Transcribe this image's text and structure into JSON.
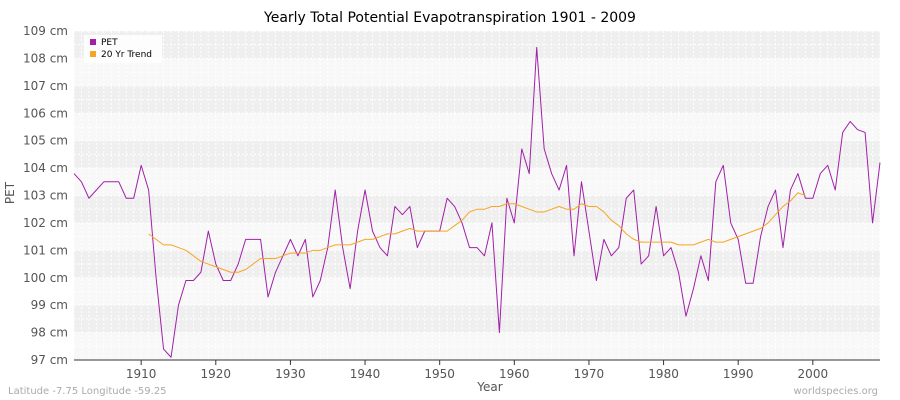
{
  "chart_data": {
    "type": "line",
    "title": "Yearly Total Potential Evapotranspiration 1901 - 2009",
    "xlabel": "Year",
    "ylabel": "PET",
    "xlim": [
      1901,
      2009
    ],
    "ylim": [
      97,
      109
    ],
    "x_ticks": [
      1910,
      1920,
      1930,
      1940,
      1950,
      1960,
      1970,
      1980,
      1990,
      2000
    ],
    "y_ticks": [
      {
        "value": 97,
        "label": "97 cm"
      },
      {
        "value": 98,
        "label": "98 cm"
      },
      {
        "value": 99,
        "label": "99 cm"
      },
      {
        "value": 100,
        "label": "100 cm"
      },
      {
        "value": 101,
        "label": "101 cm"
      },
      {
        "value": 102,
        "label": "102 cm"
      },
      {
        "value": 103,
        "label": "103 cm"
      },
      {
        "value": 104,
        "label": "104 cm"
      },
      {
        "value": 105,
        "label": "105 cm"
      },
      {
        "value": 106,
        "label": "106 cm"
      },
      {
        "value": 107,
        "label": "107 cm"
      },
      {
        "value": 108,
        "label": "108 cm"
      },
      {
        "value": 109,
        "label": "109 cm"
      }
    ],
    "grid": true,
    "legend_position": "top-left",
    "series": [
      {
        "name": "PET",
        "color": "#a020a8",
        "x": [
          1901,
          1902,
          1903,
          1904,
          1905,
          1906,
          1907,
          1908,
          1909,
          1910,
          1911,
          1912,
          1913,
          1914,
          1915,
          1916,
          1917,
          1918,
          1919,
          1920,
          1921,
          1922,
          1923,
          1924,
          1925,
          1926,
          1927,
          1928,
          1929,
          1930,
          1931,
          1932,
          1933,
          1934,
          1935,
          1936,
          1937,
          1938,
          1939,
          1940,
          1941,
          1942,
          1943,
          1944,
          1945,
          1946,
          1947,
          1948,
          1949,
          1950,
          1951,
          1952,
          1953,
          1954,
          1955,
          1956,
          1957,
          1958,
          1959,
          1960,
          1961,
          1962,
          1963,
          1964,
          1965,
          1966,
          1967,
          1968,
          1969,
          1970,
          1971,
          1972,
          1973,
          1974,
          1975,
          1976,
          1977,
          1978,
          1979,
          1980,
          1981,
          1982,
          1983,
          1984,
          1985,
          1986,
          1987,
          1988,
          1989,
          1990,
          1991,
          1992,
          1993,
          1994,
          1995,
          1996,
          1997,
          1998,
          1999,
          2000,
          2001,
          2002,
          2003,
          2004,
          2005,
          2006,
          2007,
          2008,
          2009
        ],
        "values": [
          103.8,
          103.5,
          102.9,
          103.2,
          103.5,
          103.5,
          103.5,
          102.9,
          102.9,
          104.1,
          103.2,
          100.0,
          97.4,
          97.1,
          99.0,
          99.9,
          99.9,
          100.2,
          101.7,
          100.5,
          99.9,
          99.9,
          100.5,
          101.4,
          101.4,
          101.4,
          99.3,
          100.2,
          100.8,
          101.4,
          100.8,
          101.4,
          99.3,
          99.9,
          101.1,
          103.2,
          101.1,
          99.6,
          101.7,
          103.2,
          101.7,
          101.1,
          100.8,
          102.6,
          102.3,
          102.6,
          101.1,
          101.7,
          101.7,
          101.7,
          102.9,
          102.6,
          102.0,
          101.1,
          101.1,
          100.8,
          102.0,
          98.0,
          102.9,
          102.0,
          104.7,
          103.8,
          108.4,
          104.7,
          103.8,
          103.2,
          104.1,
          100.8,
          103.5,
          101.7,
          99.9,
          101.4,
          100.8,
          101.1,
          102.9,
          103.2,
          100.5,
          100.8,
          102.6,
          100.8,
          101.1,
          100.2,
          98.6,
          99.6,
          100.8,
          99.9,
          103.5,
          104.1,
          102.0,
          101.4,
          99.8,
          99.8,
          101.5,
          102.6,
          103.2,
          101.1,
          103.2,
          103.8,
          102.9,
          102.9,
          103.8,
          104.1,
          103.2,
          105.3,
          105.7,
          105.4,
          105.3,
          102.0,
          104.2
        ]
      },
      {
        "name": "20 Yr Trend",
        "color": "#f5a623",
        "x": [
          1911,
          1912,
          1913,
          1914,
          1915,
          1916,
          1917,
          1918,
          1919,
          1920,
          1921,
          1922,
          1923,
          1924,
          1925,
          1926,
          1927,
          1928,
          1929,
          1930,
          1931,
          1932,
          1933,
          1934,
          1935,
          1936,
          1937,
          1938,
          1939,
          1940,
          1941,
          1942,
          1943,
          1944,
          1945,
          1946,
          1947,
          1948,
          1949,
          1950,
          1951,
          1952,
          1953,
          1954,
          1955,
          1956,
          1957,
          1958,
          1959,
          1960,
          1961,
          1962,
          1963,
          1964,
          1965,
          1966,
          1967,
          1968,
          1969,
          1970,
          1971,
          1972,
          1973,
          1974,
          1975,
          1976,
          1977,
          1978,
          1979,
          1980,
          1981,
          1982,
          1983,
          1984,
          1985,
          1986,
          1987,
          1988,
          1989,
          1990,
          1991,
          1992,
          1993,
          1994,
          1995,
          1996,
          1997,
          1998,
          1999
        ],
        "values": [
          101.6,
          101.4,
          101.2,
          101.2,
          101.1,
          101.0,
          100.8,
          100.6,
          100.5,
          100.4,
          100.3,
          100.2,
          100.2,
          100.3,
          100.5,
          100.7,
          100.7,
          100.7,
          100.8,
          100.9,
          100.9,
          100.9,
          101.0,
          101.0,
          101.1,
          101.2,
          101.2,
          101.2,
          101.3,
          101.4,
          101.4,
          101.5,
          101.6,
          101.6,
          101.7,
          101.8,
          101.7,
          101.7,
          101.7,
          101.7,
          101.7,
          101.9,
          102.1,
          102.4,
          102.5,
          102.5,
          102.6,
          102.6,
          102.7,
          102.7,
          102.6,
          102.5,
          102.4,
          102.4,
          102.5,
          102.6,
          102.5,
          102.5,
          102.7,
          102.6,
          102.6,
          102.4,
          102.1,
          101.9,
          101.6,
          101.4,
          101.3,
          101.3,
          101.3,
          101.3,
          101.3,
          101.2,
          101.2,
          101.2,
          101.3,
          101.4,
          101.3,
          101.3,
          101.4,
          101.5,
          101.6,
          101.7,
          101.8,
          102.0,
          102.3,
          102.6,
          102.8,
          103.1,
          103.0
        ]
      }
    ]
  },
  "footer": {
    "coordinates": "Latitude -7.75 Longitude -59.25",
    "site": "worldspecies.org"
  },
  "colors": {
    "plot_band_light": "#f8f8f8",
    "plot_band_dark": "#efefef",
    "grid_line": "#ffffff",
    "axis_line": "#333333"
  }
}
